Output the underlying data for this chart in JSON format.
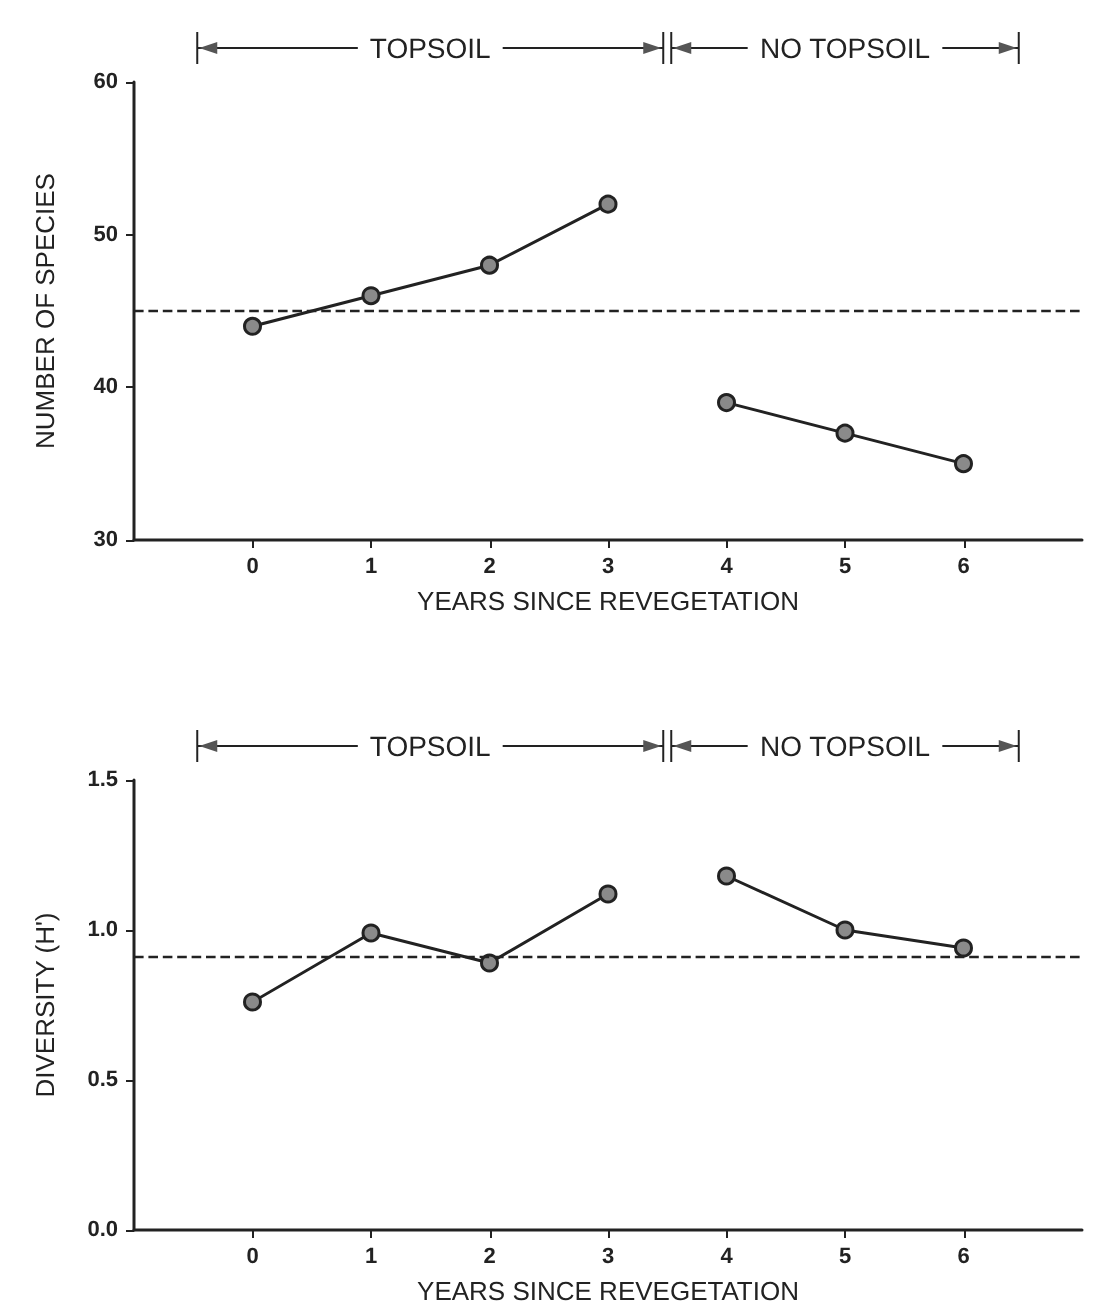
{
  "chart_data": [
    {
      "type": "line",
      "ylabel": "NUMBER OF SPECIES",
      "xlabel": "YEARS SINCE REVEGETATION",
      "xlim": [
        -1,
        7
      ],
      "xticks": [
        0,
        1,
        2,
        3,
        4,
        5,
        6
      ],
      "ylim": [
        30,
        60
      ],
      "yticks": [
        30,
        40,
        50,
        60
      ],
      "grid": false,
      "marker": "circle",
      "line_style": "solid",
      "series": [
        {
          "color": "#222222",
          "x": [
            0,
            1,
            2,
            3
          ],
          "values": [
            44,
            46,
            48,
            52
          ]
        },
        {
          "color": "#222222",
          "x": [
            4,
            5,
            6
          ],
          "values": [
            39,
            37,
            35
          ]
        }
      ],
      "ref_lines": [
        {
          "axis": "y",
          "value": 45,
          "line_style": "dashed",
          "color": "#222222"
        }
      ],
      "annotations": [
        "TOPSOIL",
        "NO TOPSOIL"
      ]
    },
    {
      "type": "line",
      "ylabel": "DIVERSITY (H')",
      "xlabel": "YEARS SINCE REVEGETATION",
      "xlim": [
        -1,
        7
      ],
      "xticks": [
        0,
        1,
        2,
        3,
        4,
        5,
        6
      ],
      "ylim": [
        0,
        1.5
      ],
      "yticks": [
        {
          "value": 0,
          "label": "0.0"
        },
        0.5,
        {
          "value": 1,
          "label": "1.0"
        },
        1.5
      ],
      "grid": false,
      "marker": "circle",
      "line_style": "solid",
      "series": [
        {
          "color": "#222222",
          "x": [
            0,
            1,
            2,
            3
          ],
          "values": [
            0.76,
            0.99,
            0.89,
            1.12
          ]
        },
        {
          "color": "#222222",
          "x": [
            4,
            5,
            6
          ],
          "values": [
            1.18,
            1.0,
            0.94
          ]
        }
      ],
      "ref_lines": [
        {
          "axis": "y",
          "value": 0.91,
          "line_style": "dashed",
          "color": "#222222"
        }
      ],
      "annotations": [
        "TOPSOIL",
        "NO TOPSOIL"
      ]
    }
  ]
}
